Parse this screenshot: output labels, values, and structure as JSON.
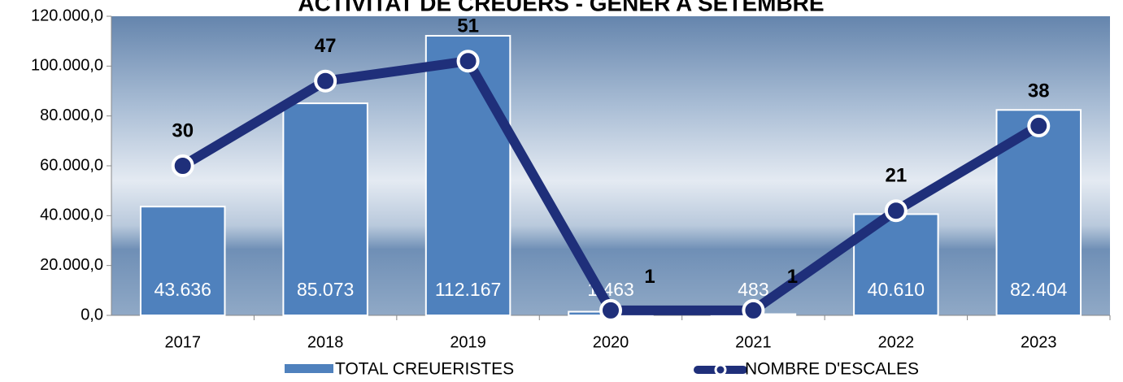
{
  "chart_data": {
    "type": "combo",
    "title": "ACTIVITAT DE CREUERS - GENER A SETEMBRE",
    "categories": [
      "2017",
      "2018",
      "2019",
      "2020",
      "2021",
      "2022",
      "2023"
    ],
    "series": [
      {
        "name": "TOTAL CREUERISTES",
        "type": "bar",
        "color": "#4f81bd",
        "values": [
          43636,
          85073,
          112167,
          1463,
          483,
          40610,
          82404
        ],
        "value_labels": [
          "43.636",
          "85.073",
          "112.167",
          "1.463",
          "483",
          "40.610",
          "82.404"
        ]
      },
      {
        "name": "NOMBRE D'ESCALES",
        "type": "line",
        "axis": "y2",
        "color": "#1f2f7a",
        "values": [
          30,
          47,
          51,
          1,
          1,
          21,
          38
        ]
      }
    ],
    "ylim": [
      0,
      120000
    ],
    "yticks": [
      {
        "value": 0,
        "label": "0,0"
      },
      {
        "value": 20000,
        "label": "20.000,0"
      },
      {
        "value": 40000,
        "label": "40.000,0"
      },
      {
        "value": 60000,
        "label": "60.000,0"
      },
      {
        "value": 80000,
        "label": "80.000,0"
      },
      {
        "value": 100000,
        "label": "100.000,0"
      },
      {
        "value": 120000,
        "label": "120.000,0"
      }
    ],
    "y2lim": [
      0,
      60
    ],
    "legend": "bottom"
  }
}
